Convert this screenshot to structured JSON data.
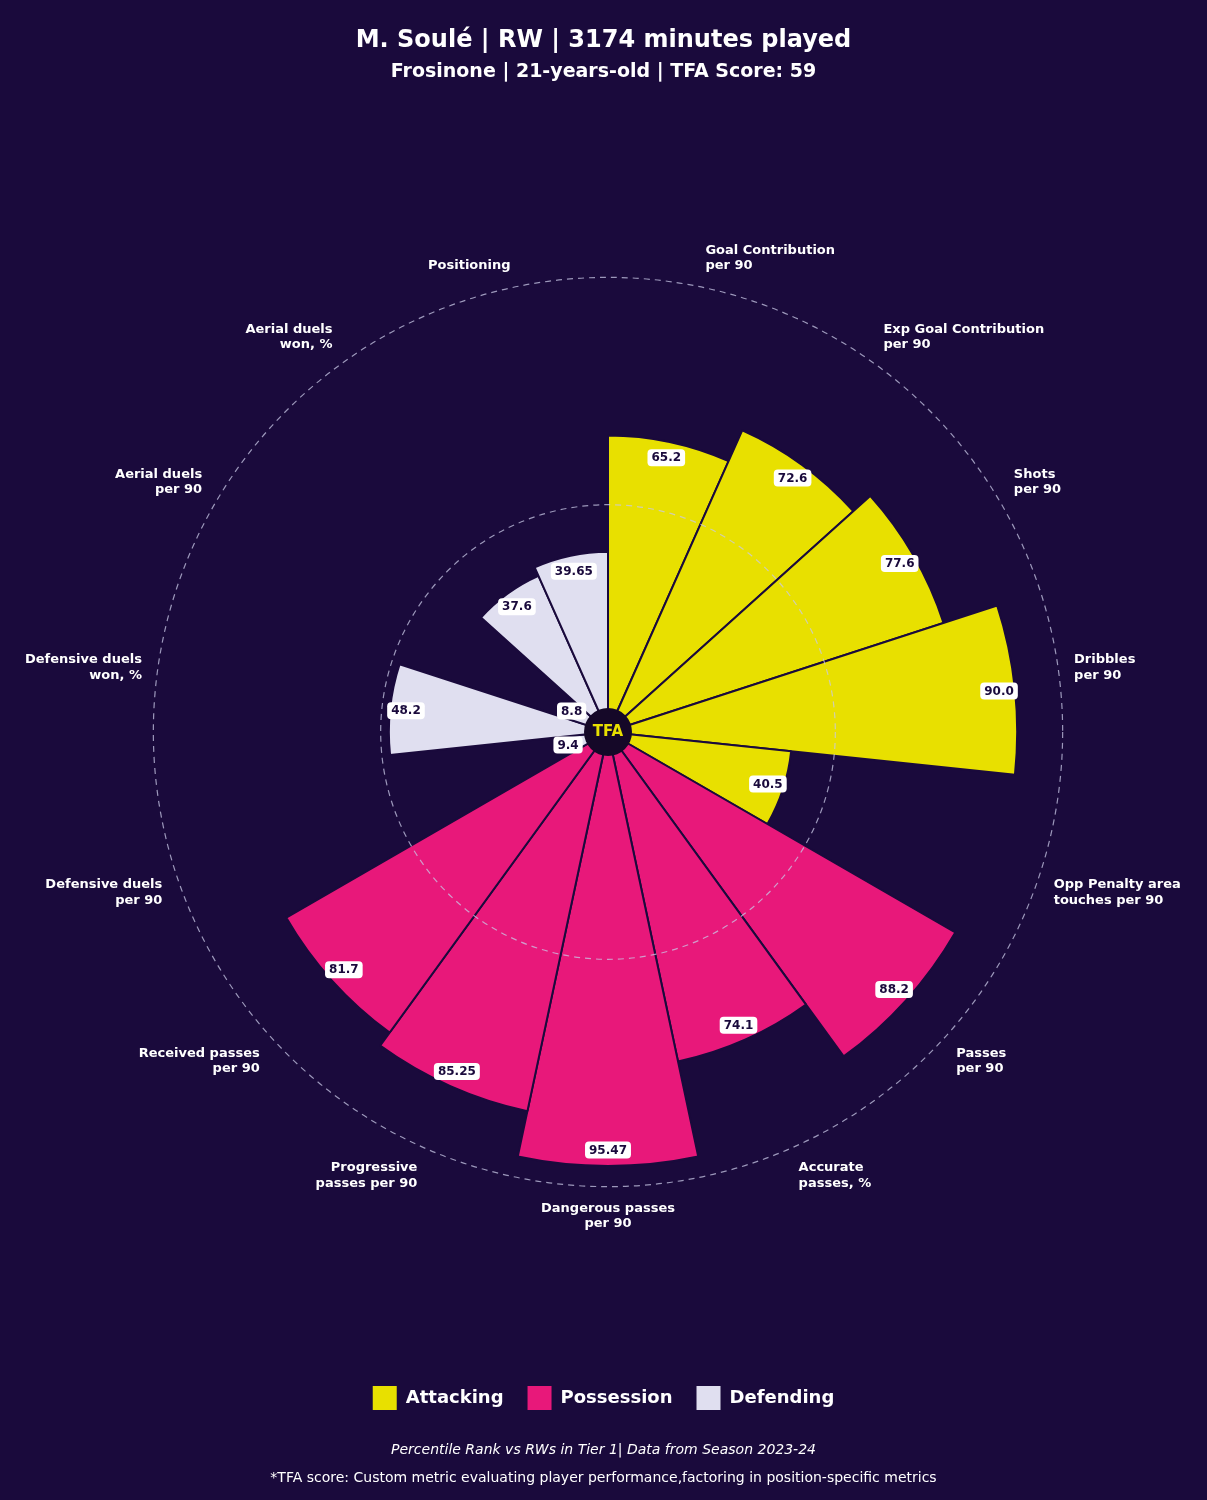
{
  "chart_data": {
    "type": "polarArea",
    "title": "M. Soulé | RW | 3174 minutes played",
    "subtitle": "Frosinone | 21-years-old | TFA Score: 59",
    "categories": [
      "Goal Contribution\nper 90",
      "Exp Goal Contribution\nper 90",
      "Shots\nper 90",
      "Dribbles\nper 90",
      "Opp Penalty area\ntouches per 90",
      "Passes\nper 90",
      "Accurate\npasses, %",
      "Dangerous passes\nper 90",
      "Progressive\npasses per 90",
      "Received passes\nper 90",
      "Defensive duels\nper 90",
      "Defensive duels\nwon, %",
      "Aerial duels\nper 90",
      "Aerial duels\nwon, %",
      "Positioning"
    ],
    "values": [
      65.2,
      72.6,
      77.6,
      90.0,
      40.5,
      88.2,
      74.1,
      95.47,
      85.25,
      81.7,
      9.4,
      48.2,
      8.8,
      37.6,
      39.65
    ],
    "value_labels": [
      "65.2",
      "72.6",
      "77.6",
      "90.0",
      "40.5",
      "88.2",
      "74.1",
      "95.47",
      "85.25",
      "81.7",
      "9.4",
      "48.2",
      "8.8",
      "37.6",
      "39.65"
    ],
    "colors": [
      "#e8e000",
      "#e8e000",
      "#e8e000",
      "#e8e000",
      "#e8e000",
      "#e8187a",
      "#e8187a",
      "#e8187a",
      "#e8187a",
      "#e8187a",
      "#e0dff0",
      "#e0dff0",
      "#e0dff0",
      "#e0dff0",
      "#e0dff0"
    ],
    "data_labels": true,
    "ylim": [
      0,
      100
    ],
    "yticks": [
      0,
      50,
      100
    ],
    "tick_labels": false,
    "grid": true,
    "legend": "bottom",
    "legend_entries": [
      {
        "name": "Attacking",
        "color": "#e8e000"
      },
      {
        "name": "Possession",
        "color": "#e8187a"
      },
      {
        "name": "Defending",
        "color": "#e0dff0"
      }
    ],
    "center_text": "TFA",
    "footnotes": [
      "Percentile Rank vs RWs in Tier 1| Data from Season 2023-24",
      "*TFA score: Custom metric evaluating player performance,factoring in position-specific metrics"
    ]
  }
}
